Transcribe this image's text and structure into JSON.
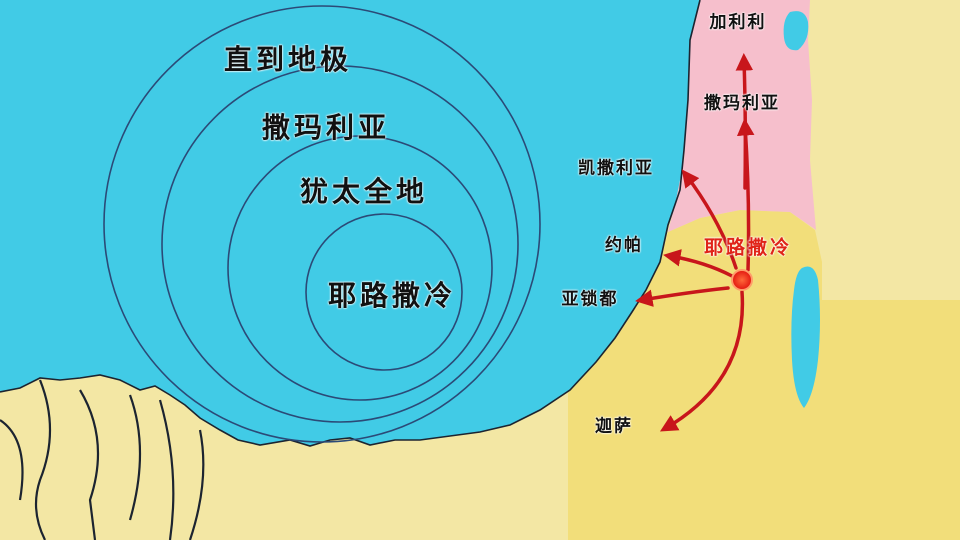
{
  "rings": [
    {
      "id": "ends",
      "label": "直到地极"
    },
    {
      "id": "samaria",
      "label": "撒玛利亚"
    },
    {
      "id": "judea",
      "label": "犹太全地"
    },
    {
      "id": "jerusalem",
      "label": "耶路撒冷"
    }
  ],
  "center_city": {
    "label": "耶路撒冷",
    "color": "#e8231a"
  },
  "places": {
    "galilee": "加利利",
    "samaria": "撒玛利亚",
    "caesarea": "凯撒利亚",
    "joppa": "约帕",
    "azotus": "亚锁都",
    "gaza": "迦萨"
  },
  "colors": {
    "sea": "#41cbe6",
    "land": "#f3e7a4",
    "judea_region": "#f2de7a",
    "samaria_region": "#f6bfcc",
    "arrow": "#c8161b",
    "ring": "#2b4a77"
  },
  "icons": {
    "center": "city-dot-icon",
    "route": "arrow-icon"
  }
}
